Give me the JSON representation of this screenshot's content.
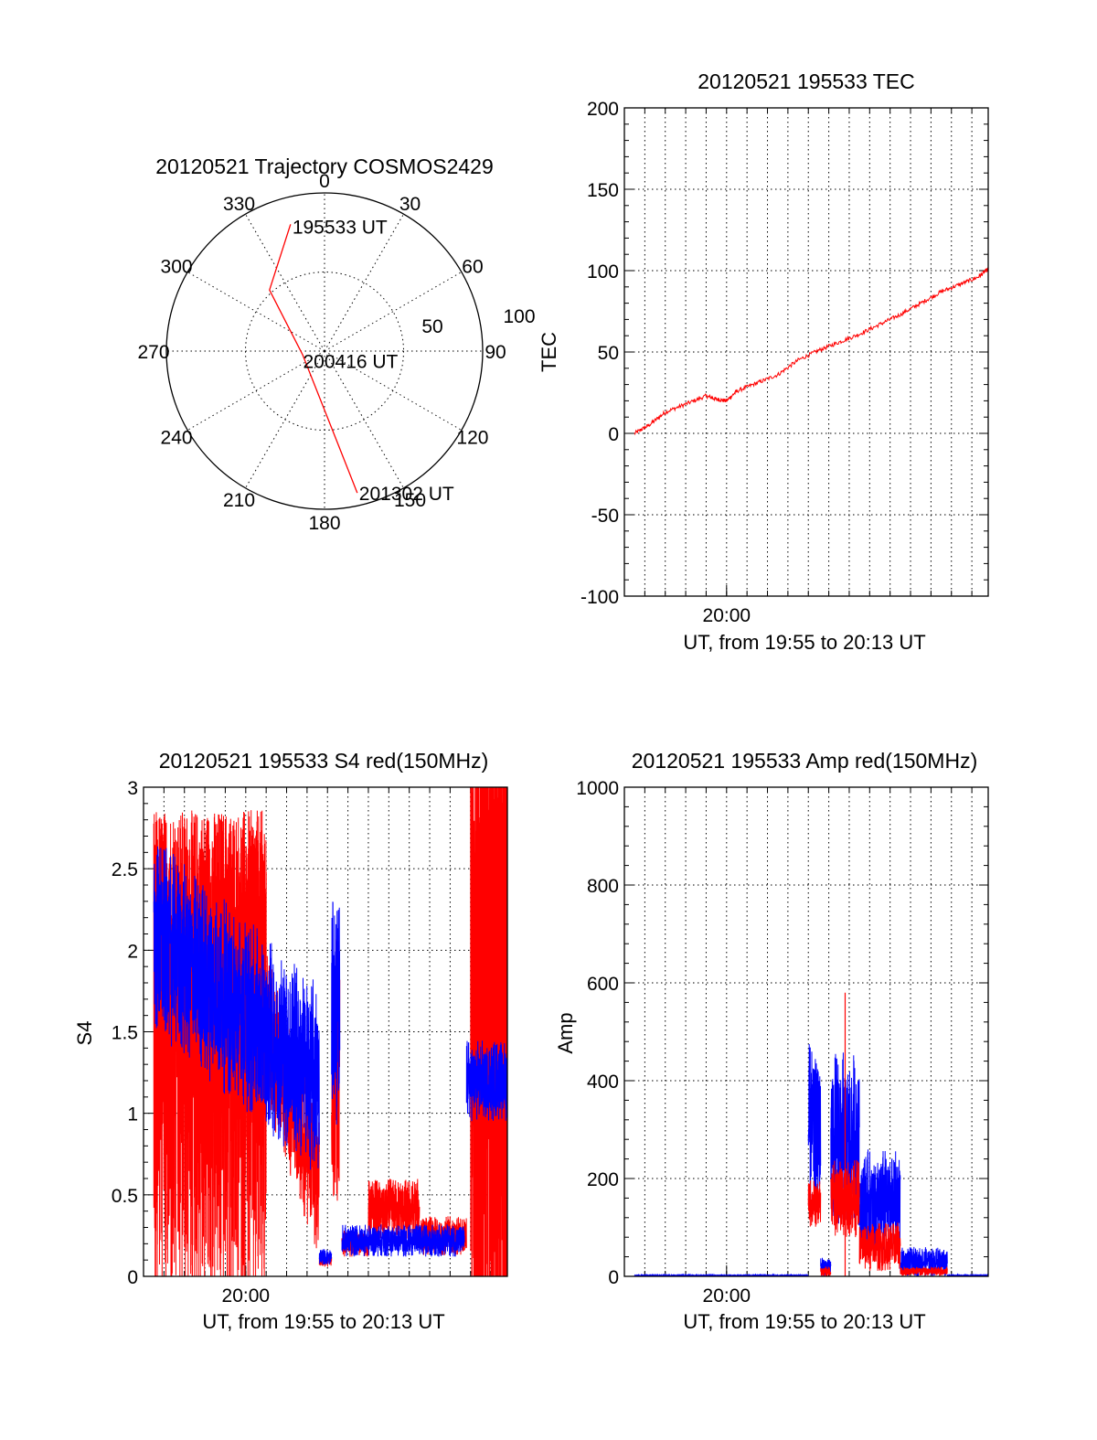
{
  "chart_data": [
    {
      "id": "trajectory",
      "type": "polar",
      "title": "20120521 Trajectory COSMOS2429",
      "angle_labels": [
        "0",
        "30",
        "60",
        "90",
        "120",
        "150",
        "180",
        "210",
        "240",
        "270",
        "300",
        "330"
      ],
      "radial_labels": [
        "50",
        "100"
      ],
      "radial_max": 100,
      "series_color": "#ff0000",
      "trajectory": [
        {
          "az": 345,
          "el_from_zenith": 83
        },
        {
          "az": 318,
          "el_from_zenith": 52
        },
        {
          "az": 260,
          "el_from_zenith": 14
        },
        {
          "az": 175,
          "el_from_zenith": 48
        },
        {
          "az": 167,
          "el_from_zenith": 92
        }
      ],
      "annotations": [
        {
          "text": "195533 UT",
          "az": 345,
          "el_from_zenith": 83
        },
        {
          "text": "200416 UT",
          "az": 120,
          "el_from_zenith": 3
        },
        {
          "text": "201302 UT",
          "az": 167,
          "el_from_zenith": 92
        }
      ]
    },
    {
      "id": "tec",
      "type": "line",
      "title": "20120521 195533 TEC",
      "xlabel": "UT, from 19:55 to 20:13 UT",
      "ylabel": "TEC",
      "x_range_minutes": [
        0,
        17.8
      ],
      "x_tick_labels": [
        {
          "minute": 5,
          "label": "20:00"
        }
      ],
      "ylim": [
        -100,
        200
      ],
      "y_ticks": [
        -100,
        -50,
        0,
        50,
        100,
        150,
        200
      ],
      "grid": true,
      "series": [
        {
          "color": "#ff0000",
          "points": [
            [
              0.5,
              0
            ],
            [
              1.2,
              5
            ],
            [
              2.0,
              13
            ],
            [
              3.0,
              18
            ],
            [
              4.0,
              23
            ],
            [
              4.5,
              21
            ],
            [
              5.0,
              20
            ],
            [
              5.5,
              26
            ],
            [
              6.5,
              31
            ],
            [
              7.5,
              36
            ],
            [
              8.5,
              45
            ],
            [
              9.5,
              51
            ],
            [
              10.5,
              56
            ],
            [
              11.5,
              61
            ],
            [
              12.5,
              67
            ],
            [
              13.5,
              73
            ],
            [
              14.5,
              80
            ],
            [
              15.5,
              87
            ],
            [
              16.5,
              92
            ],
            [
              17.3,
              96
            ],
            [
              17.8,
              101
            ]
          ]
        }
      ]
    },
    {
      "id": "s4",
      "type": "line",
      "title": "20120521 195533 S4 red(150MHz)",
      "xlabel": "UT, from 19:55 to 20:13 UT",
      "ylabel": "S4",
      "x_range_minutes": [
        0,
        17.8
      ],
      "x_tick_labels": [
        {
          "minute": 5,
          "label": "20:00"
        }
      ],
      "ylim": [
        0,
        3
      ],
      "y_ticks": [
        0,
        0.5,
        1,
        1.5,
        2,
        2.5,
        3
      ],
      "grid": true,
      "series": [
        {
          "color": "#ff0000",
          "segments": [
            {
              "from": 0.5,
              "to": 6.0,
              "base": 1.6,
              "amp": 0.9,
              "kind": "saturated"
            },
            {
              "from": 6.0,
              "to": 8.6,
              "base": 1.5,
              "amp": 0.5,
              "kind": "decay_to",
              "end": 0.6
            },
            {
              "from": 8.6,
              "to": 9.2,
              "base": 0.1,
              "amp": 0.05
            },
            {
              "from": 9.2,
              "to": 9.6,
              "base": 1.2,
              "amp": 0.9
            },
            {
              "from": 9.7,
              "to": 11.0,
              "base": 0.2,
              "amp": 0.08
            },
            {
              "from": 11.0,
              "to": 13.5,
              "base": 0.4,
              "amp": 0.2
            },
            {
              "from": 13.5,
              "to": 15.8,
              "base": 0.25,
              "amp": 0.12
            },
            {
              "from": 16.0,
              "to": 17.8,
              "base": 1.5,
              "amp": 1.5,
              "kind": "saturated"
            }
          ]
        },
        {
          "color": "#0000ff",
          "segments": [
            {
              "from": 0.5,
              "to": 8.6,
              "base": 2.1,
              "amp": 0.6,
              "kind": "decay_to",
              "end": 1.2
            },
            {
              "from": 8.6,
              "to": 9.2,
              "base": 0.12,
              "amp": 0.05
            },
            {
              "from": 9.2,
              "to": 9.6,
              "base": 1.6,
              "amp": 0.7
            },
            {
              "from": 9.7,
              "to": 15.7,
              "base": 0.22,
              "amp": 0.1
            },
            {
              "from": 15.8,
              "to": 17.8,
              "base": 1.2,
              "amp": 0.25
            }
          ]
        }
      ]
    },
    {
      "id": "amp",
      "type": "line",
      "title": "20120521 195533 Amp red(150MHz)",
      "xlabel": "UT, from 19:55 to 20:13 UT",
      "ylabel": "Amp",
      "x_range_minutes": [
        0,
        17.8
      ],
      "x_tick_labels": [
        {
          "minute": 5,
          "label": "20:00"
        }
      ],
      "ylim": [
        0,
        1000
      ],
      "y_ticks": [
        0,
        200,
        400,
        600,
        800,
        1000
      ],
      "grid": true,
      "series": [
        {
          "color": "#0000ff",
          "segments": [
            {
              "from": 0.5,
              "to": 9.0,
              "base": 2,
              "amp": 1
            },
            {
              "from": 9.0,
              "to": 9.6,
              "base": 300,
              "amp": 180
            },
            {
              "from": 9.6,
              "to": 10.1,
              "base": 20,
              "amp": 20
            },
            {
              "from": 10.1,
              "to": 11.5,
              "base": 280,
              "amp": 180
            },
            {
              "from": 11.5,
              "to": 13.5,
              "base": 150,
              "amp": 110
            },
            {
              "from": 13.5,
              "to": 15.8,
              "base": 30,
              "amp": 30
            },
            {
              "from": 15.8,
              "to": 17.8,
              "base": 2,
              "amp": 1
            }
          ]
        },
        {
          "color": "#ff0000",
          "segments": [
            {
              "from": 9.0,
              "to": 9.6,
              "base": 150,
              "amp": 50
            },
            {
              "from": 9.6,
              "to": 10.1,
              "base": 10,
              "amp": 10
            },
            {
              "from": 10.1,
              "to": 11.5,
              "base": 160,
              "amp": 80
            },
            {
              "from": 11.5,
              "to": 13.5,
              "base": 60,
              "amp": 50
            },
            {
              "from": 13.5,
              "to": 15.8,
              "base": 10,
              "amp": 10
            }
          ],
          "spike": {
            "x": 10.8,
            "y": 580
          }
        }
      ]
    }
  ]
}
